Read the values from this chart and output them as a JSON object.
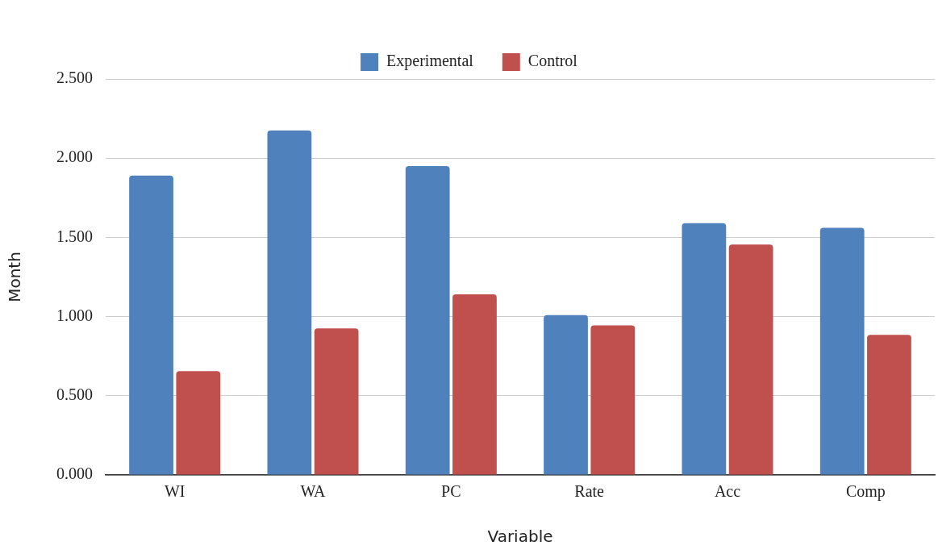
{
  "chart_data": {
    "type": "bar",
    "xlabel": "Variable",
    "ylabel": "Month",
    "categories": [
      "WI",
      "WA",
      "PC",
      "Rate",
      "Acc",
      "Comp"
    ],
    "series": [
      {
        "name": "Experimental",
        "color": "#4f81bd",
        "values": [
          1.89,
          2.175,
          1.95,
          1.01,
          1.59,
          1.56
        ]
      },
      {
        "name": "Control",
        "color": "#c0504d",
        "values": [
          0.655,
          0.925,
          1.14,
          0.945,
          1.455,
          0.885
        ]
      }
    ],
    "ylim": [
      0,
      2.5
    ],
    "yticks": [
      {
        "value": 0,
        "label": "0.000"
      },
      {
        "value": 0.5,
        "label": "0.500"
      },
      {
        "value": 1,
        "label": "1.000"
      },
      {
        "value": 1.5,
        "label": "1.500"
      },
      {
        "value": 2,
        "label": "2.000"
      },
      {
        "value": 2.5,
        "label": "2.500"
      }
    ],
    "grid": "y",
    "legend": "top"
  }
}
